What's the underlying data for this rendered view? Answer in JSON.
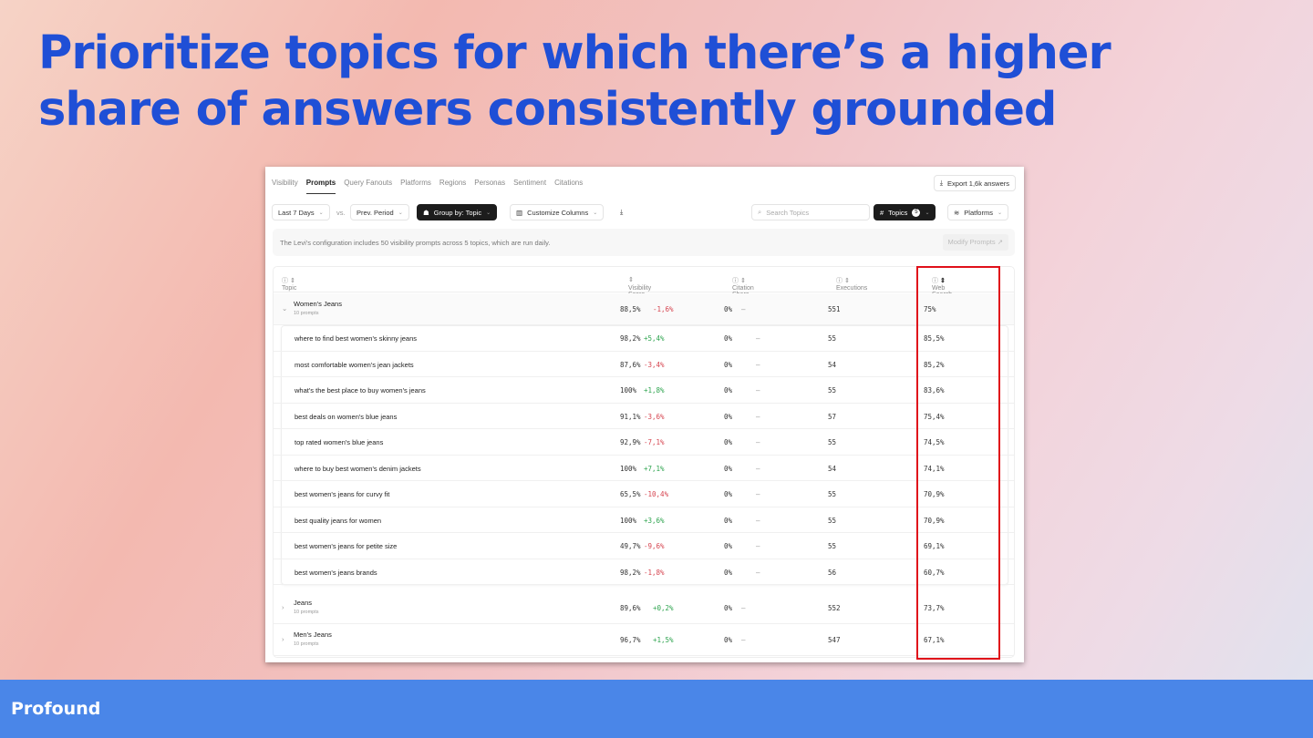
{
  "slide": {
    "title": "Prioritize topics for which there’s a higher share of answers consistently grounded",
    "brand": "Profound",
    "highlight_color": "#e0101a"
  },
  "tabs": [
    "Visibility",
    "Prompts",
    "Query Fanouts",
    "Platforms",
    "Regions",
    "Personas",
    "Sentiment",
    "Citations"
  ],
  "active_tab": "Prompts",
  "toolbar": {
    "export": "Export 1,6k answers",
    "period": "Last 7 Days",
    "vs": "vs.",
    "compare": "Prev. Period",
    "group_by": "Group by: Topic",
    "columns": "Customize Columns",
    "search_placeholder": "Search Topics",
    "topics": "Topics",
    "topics_count": "5",
    "platforms": "Platforms"
  },
  "info": {
    "text": "The Levi's configuration includes 50 visibility prompts across 5 topics, which are run daily.",
    "modify": "Modify Prompts"
  },
  "columns": {
    "topic": "Topic",
    "visibility": "Visibility Score",
    "citation": "Citation Share",
    "executions": "Executions",
    "web_search": "Web Search"
  },
  "groups": [
    {
      "name": "Women's Jeans",
      "sub": "10 prompts",
      "visibility": "88,5%",
      "delta": "-1,6%",
      "citation": "0%",
      "citation_delta": "–",
      "executions": "551",
      "web_search": "75%",
      "expanded": true,
      "prompts": [
        {
          "name": "where to find best women's skinny jeans",
          "visibility": "98,2%",
          "delta": "+5,4%",
          "citation": "0%",
          "citation_delta": "–",
          "executions": "55",
          "web_search": "85,5%"
        },
        {
          "name": "most comfortable women's jean jackets",
          "visibility": "87,6%",
          "delta": "-3,4%",
          "citation": "0%",
          "citation_delta": "–",
          "executions": "54",
          "web_search": "85,2%"
        },
        {
          "name": "what's the best place to buy women's jeans",
          "visibility": "100%",
          "delta": "+1,8%",
          "citation": "0%",
          "citation_delta": "–",
          "executions": "55",
          "web_search": "83,6%"
        },
        {
          "name": "best deals on women's blue jeans",
          "visibility": "91,1%",
          "delta": "-3,6%",
          "citation": "0%",
          "citation_delta": "–",
          "executions": "57",
          "web_search": "75,4%"
        },
        {
          "name": "top rated women's blue jeans",
          "visibility": "92,9%",
          "delta": "-7,1%",
          "citation": "0%",
          "citation_delta": "–",
          "executions": "55",
          "web_search": "74,5%"
        },
        {
          "name": "where to buy best women's denim jackets",
          "visibility": "100%",
          "delta": "+7,1%",
          "citation": "0%",
          "citation_delta": "–",
          "executions": "54",
          "web_search": "74,1%"
        },
        {
          "name": "best women's jeans for curvy fit",
          "visibility": "65,5%",
          "delta": "-10,4%",
          "citation": "0%",
          "citation_delta": "–",
          "executions": "55",
          "web_search": "70,9%"
        },
        {
          "name": "best quality jeans for women",
          "visibility": "100%",
          "delta": "+3,6%",
          "citation": "0%",
          "citation_delta": "–",
          "executions": "55",
          "web_search": "70,9%"
        },
        {
          "name": "best women's jeans for petite size",
          "visibility": "49,7%",
          "delta": "-9,6%",
          "citation": "0%",
          "citation_delta": "–",
          "executions": "55",
          "web_search": "69,1%"
        },
        {
          "name": "best women's jeans brands",
          "visibility": "98,2%",
          "delta": "-1,8%",
          "citation": "0%",
          "citation_delta": "–",
          "executions": "56",
          "web_search": "60,7%"
        }
      ]
    },
    {
      "name": "Jeans",
      "sub": "10 prompts",
      "visibility": "89,6%",
      "delta": "+0,2%",
      "citation": "0%",
      "citation_delta": "–",
      "executions": "552",
      "web_search": "73,7%",
      "expanded": false
    },
    {
      "name": "Men's Jeans",
      "sub": "10 prompts",
      "visibility": "96,7%",
      "delta": "+1,5%",
      "citation": "0%",
      "citation_delta": "–",
      "executions": "547",
      "web_search": "67,1%",
      "expanded": false
    }
  ]
}
